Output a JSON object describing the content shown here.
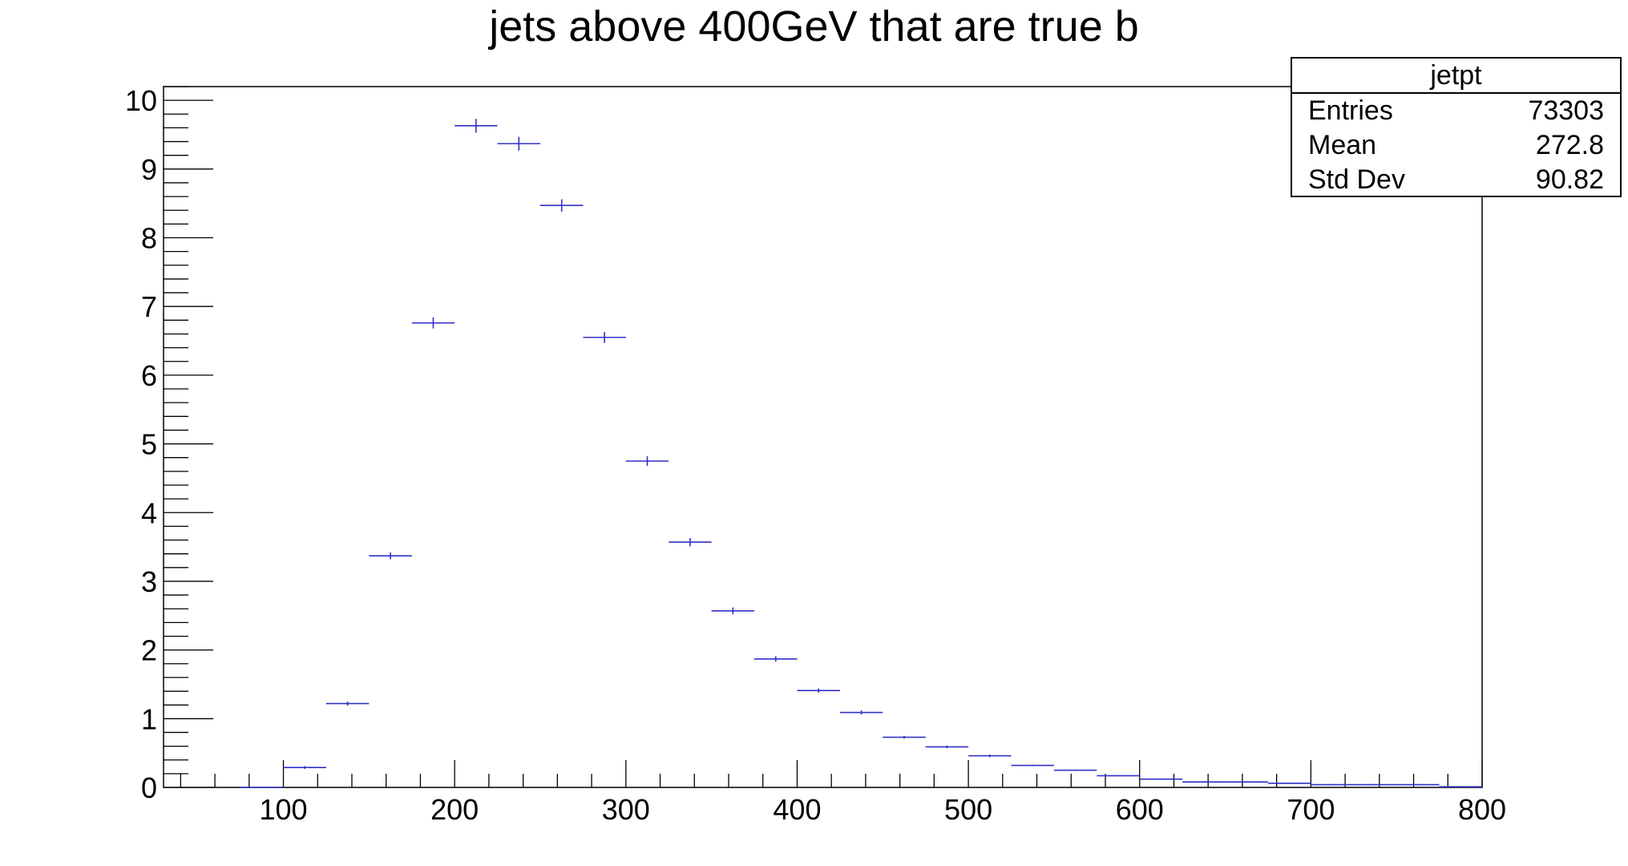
{
  "chart_data": {
    "type": "scatter",
    "title": "jets above 400GeV that are true b",
    "xlabel": "",
    "ylabel": "",
    "xlim": [
      30,
      800
    ],
    "ylim": [
      0,
      10.2
    ],
    "x_ticks": [
      100,
      200,
      300,
      400,
      500,
      600,
      700,
      800
    ],
    "y_ticks": [
      0,
      1,
      2,
      3,
      4,
      5,
      6,
      7,
      8,
      9,
      10
    ],
    "grid": false,
    "series": [
      {
        "name": "jetpt",
        "color": "#3030c8",
        "bin_width": 25,
        "x": [
          87.5,
          112.5,
          137.5,
          162.5,
          187.5,
          212.5,
          237.5,
          262.5,
          287.5,
          312.5,
          337.5,
          362.5,
          387.5,
          412.5,
          437.5,
          462.5,
          487.5,
          512.5,
          537.5,
          562.5,
          587.5,
          612.5,
          637.5,
          662.5,
          687.5,
          712.5,
          737.5,
          762.5,
          787.5
        ],
        "y": [
          0.0,
          0.29,
          1.22,
          3.37,
          6.76,
          9.63,
          9.37,
          8.47,
          6.55,
          4.75,
          3.57,
          2.57,
          1.87,
          1.41,
          1.09,
          0.73,
          0.59,
          0.46,
          0.32,
          0.25,
          0.17,
          0.12,
          0.08,
          0.08,
          0.06,
          0.04,
          0.04,
          0.04,
          0.01
        ],
        "y_err": [
          0.01,
          0.02,
          0.03,
          0.05,
          0.08,
          0.1,
          0.1,
          0.09,
          0.08,
          0.07,
          0.06,
          0.05,
          0.04,
          0.03,
          0.03,
          0.02,
          0.02,
          0.02,
          0.01,
          0.01,
          0.01,
          0.01,
          0.01,
          0.01,
          0.01,
          0.01,
          0.01,
          0.01,
          0.01
        ]
      }
    ],
    "stats_box": {
      "title": "jetpt",
      "rows": [
        {
          "label": "Entries",
          "value": "73303"
        },
        {
          "label": "Mean",
          "value": "272.8"
        },
        {
          "label": "Std Dev",
          "value": "90.82"
        }
      ]
    }
  }
}
